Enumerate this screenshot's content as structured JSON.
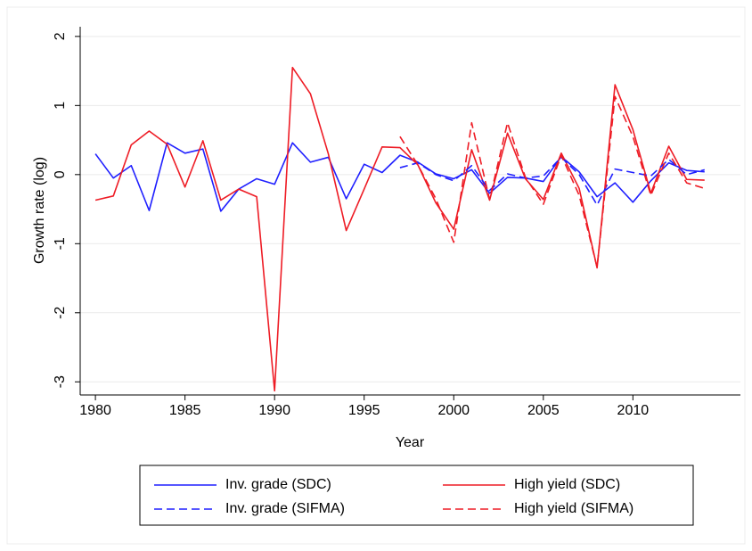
{
  "chart_data": {
    "type": "line",
    "x_label": "Year",
    "y_label": "Growth rate (log)",
    "x": [
      1980,
      1981,
      1982,
      1983,
      1984,
      1985,
      1986,
      1987,
      1988,
      1989,
      1990,
      1991,
      1992,
      1993,
      1994,
      1995,
      1996,
      1997,
      1998,
      1999,
      2000,
      2001,
      2002,
      2003,
      2004,
      2005,
      2006,
      2007,
      2008,
      2009,
      2010,
      2011,
      2012,
      2013,
      2014
    ],
    "series": [
      {
        "name": "Inv. grade (SDC)",
        "color": "#1f1fff",
        "dash": false,
        "values": [
          0.3,
          -0.05,
          0.13,
          -0.52,
          0.46,
          0.31,
          0.37,
          -0.53,
          -0.21,
          -0.06,
          -0.14,
          0.46,
          0.18,
          0.25,
          -0.35,
          0.15,
          0.03,
          0.28,
          0.18,
          0.01,
          -0.06,
          0.07,
          -0.27,
          -0.04,
          -0.05,
          -0.1,
          0.26,
          0.04,
          -0.32,
          -0.12,
          -0.4,
          -0.09,
          0.17,
          0.06,
          0.04
        ]
      },
      {
        "name": "High yield (SDC)",
        "color": "#ee1c25",
        "dash": false,
        "values": [
          -0.37,
          -0.31,
          0.43,
          0.63,
          0.44,
          -0.18,
          0.49,
          -0.37,
          -0.21,
          -0.32,
          -3.13,
          1.55,
          1.17,
          0.3,
          -0.81,
          -0.21,
          0.4,
          0.39,
          0.14,
          -0.41,
          -0.79,
          0.36,
          -0.37,
          0.6,
          -0.06,
          -0.36,
          0.31,
          -0.2,
          -1.35,
          1.3,
          0.65,
          -0.27,
          0.41,
          -0.07,
          -0.08
        ]
      },
      {
        "name": "Inv. grade (SIFMA)",
        "color": "#1f1fff",
        "dash": true,
        "values": [
          null,
          null,
          null,
          null,
          null,
          null,
          null,
          null,
          null,
          null,
          null,
          null,
          null,
          null,
          null,
          null,
          null,
          0.1,
          0.17,
          0.0,
          -0.09,
          0.13,
          -0.23,
          0.01,
          -0.05,
          -0.02,
          0.25,
          0.0,
          -0.44,
          0.08,
          0.03,
          -0.02,
          0.22,
          0.0,
          0.07
        ]
      },
      {
        "name": "High yield (SIFMA)",
        "color": "#ee1c25",
        "dash": true,
        "values": [
          null,
          null,
          null,
          null,
          null,
          null,
          null,
          null,
          null,
          null,
          null,
          null,
          null,
          null,
          null,
          null,
          null,
          0.55,
          0.14,
          -0.35,
          -0.98,
          0.75,
          -0.36,
          0.75,
          -0.04,
          -0.43,
          0.28,
          -0.3,
          -1.34,
          1.13,
          0.55,
          -0.3,
          0.31,
          -0.12,
          -0.2
        ]
      }
    ],
    "xlim": [
      1979.15,
      2016
    ],
    "xticks": [
      1980,
      1985,
      1990,
      1995,
      2000,
      2005,
      2010
    ],
    "ylim": [
      -3.19,
      2.14
    ],
    "yticks": [
      -3,
      -2,
      -1,
      0,
      1,
      2
    ],
    "grid": true,
    "legend": "bottom"
  }
}
